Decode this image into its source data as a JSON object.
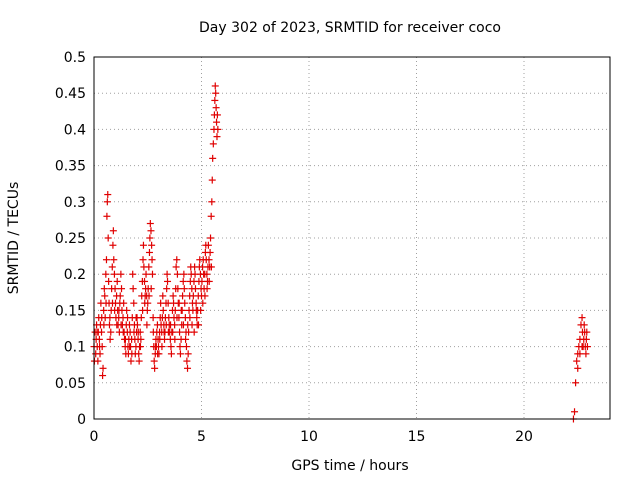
{
  "chart_data": {
    "type": "scatter",
    "title": "Day 302 of 2023, SRMTID for receiver coco",
    "xlabel": "GPS time / hours",
    "ylabel": "SRMTID / TECUs",
    "xlim": [
      0,
      24
    ],
    "ylim": [
      0,
      0.5
    ],
    "xticks": [
      "0",
      "5",
      "10",
      "15",
      "20"
    ],
    "yticks": [
      "0",
      "0.05",
      "0.1",
      "0.15",
      "0.2",
      "0.25",
      "0.3",
      "0.35",
      "0.4",
      "0.45",
      "0.5"
    ],
    "grid": true,
    "marker": "plus",
    "color": "#e00000",
    "points": [
      [
        0.0,
        0.1
      ],
      [
        0.05,
        0.12
      ],
      [
        0.08,
        0.09
      ],
      [
        0.1,
        0.11
      ],
      [
        0.12,
        0.13
      ],
      [
        0.15,
        0.1
      ],
      [
        0.18,
        0.08
      ],
      [
        0.2,
        0.12
      ],
      [
        0.22,
        0.14
      ],
      [
        0.25,
        0.11
      ],
      [
        0.28,
        0.09
      ],
      [
        0.3,
        0.13
      ],
      [
        0.32,
        0.16
      ],
      [
        0.35,
        0.12
      ],
      [
        0.38,
        0.1
      ],
      [
        0.4,
        0.06
      ],
      [
        0.42,
        0.07
      ],
      [
        0.45,
        0.15
      ],
      [
        0.48,
        0.18
      ],
      [
        0.5,
        0.17
      ],
      [
        0.52,
        0.14
      ],
      [
        0.55,
        0.2
      ],
      [
        0.58,
        0.22
      ],
      [
        0.6,
        0.28
      ],
      [
        0.62,
        0.3
      ],
      [
        0.64,
        0.31
      ],
      [
        0.66,
        0.25
      ],
      [
        0.68,
        0.19
      ],
      [
        0.7,
        0.16
      ],
      [
        0.72,
        0.13
      ],
      [
        0.75,
        0.11
      ],
      [
        0.78,
        0.12
      ],
      [
        0.8,
        0.15
      ],
      [
        0.82,
        0.18
      ],
      [
        0.85,
        0.21
      ],
      [
        0.88,
        0.24
      ],
      [
        0.9,
        0.26
      ],
      [
        0.92,
        0.22
      ],
      [
        0.95,
        0.2
      ],
      [
        0.98,
        0.18
      ],
      [
        1.0,
        0.16
      ],
      [
        1.02,
        0.14
      ],
      [
        1.05,
        0.17
      ],
      [
        1.08,
        0.19
      ],
      [
        1.1,
        0.15
      ],
      [
        1.12,
        0.13
      ],
      [
        1.15,
        0.14
      ],
      [
        1.18,
        0.12
      ],
      [
        1.2,
        0.16
      ],
      [
        1.22,
        0.17
      ],
      [
        1.25,
        0.2
      ],
      [
        1.28,
        0.18
      ],
      [
        1.3,
        0.15
      ],
      [
        1.32,
        0.13
      ],
      [
        1.35,
        0.14
      ],
      [
        1.38,
        0.16
      ],
      [
        1.4,
        0.12
      ],
      [
        1.42,
        0.11
      ],
      [
        1.45,
        0.1
      ],
      [
        1.48,
        0.09
      ],
      [
        1.5,
        0.13
      ],
      [
        1.52,
        0.15
      ],
      [
        1.55,
        0.12
      ],
      [
        1.58,
        0.1
      ],
      [
        1.6,
        0.09
      ],
      [
        1.62,
        0.11
      ],
      [
        1.65,
        0.13
      ],
      [
        1.68,
        0.12
      ],
      [
        1.7,
        0.1
      ],
      [
        1.72,
        0.08
      ],
      [
        1.75,
        0.11
      ],
      [
        1.78,
        0.14
      ],
      [
        1.8,
        0.2
      ],
      [
        1.82,
        0.18
      ],
      [
        1.85,
        0.16
      ],
      [
        1.88,
        0.13
      ],
      [
        1.9,
        0.11
      ],
      [
        1.92,
        0.09
      ],
      [
        1.95,
        0.1
      ],
      [
        1.98,
        0.12
      ],
      [
        2.0,
        0.14
      ],
      [
        2.02,
        0.13
      ],
      [
        2.05,
        0.11
      ],
      [
        2.08,
        0.09
      ],
      [
        2.1,
        0.08
      ],
      [
        2.12,
        0.1
      ],
      [
        2.15,
        0.12
      ],
      [
        2.18,
        0.11
      ],
      [
        2.2,
        0.14
      ],
      [
        2.22,
        0.17
      ],
      [
        2.25,
        0.19
      ],
      [
        2.28,
        0.22
      ],
      [
        2.3,
        0.24
      ],
      [
        2.32,
        0.21
      ],
      [
        2.35,
        0.19
      ],
      [
        2.38,
        0.17
      ],
      [
        2.4,
        0.18
      ],
      [
        2.42,
        0.2
      ],
      [
        2.45,
        0.17
      ],
      [
        2.48,
        0.15
      ],
      [
        2.5,
        0.16
      ],
      [
        2.52,
        0.18
      ],
      [
        2.55,
        0.21
      ],
      [
        2.58,
        0.23
      ],
      [
        2.6,
        0.25
      ],
      [
        2.62,
        0.27
      ],
      [
        2.65,
        0.26
      ],
      [
        2.68,
        0.24
      ],
      [
        2.7,
        0.22
      ],
      [
        2.72,
        0.2
      ],
      [
        2.75,
        0.14
      ],
      [
        2.78,
        0.1
      ],
      [
        2.8,
        0.08
      ],
      [
        2.82,
        0.07
      ],
      [
        2.85,
        0.09
      ],
      [
        2.88,
        0.11
      ],
      [
        2.9,
        0.1
      ],
      [
        2.92,
        0.12
      ],
      [
        2.95,
        0.13
      ],
      [
        2.98,
        0.11
      ],
      [
        3.0,
        0.1
      ],
      [
        3.02,
        0.09
      ],
      [
        3.05,
        0.12
      ],
      [
        3.08,
        0.14
      ],
      [
        3.1,
        0.16
      ],
      [
        3.12,
        0.13
      ],
      [
        3.15,
        0.12
      ],
      [
        3.18,
        0.14
      ],
      [
        3.2,
        0.17
      ],
      [
        3.22,
        0.15
      ],
      [
        3.25,
        0.13
      ],
      [
        3.28,
        0.11
      ],
      [
        3.3,
        0.12
      ],
      [
        3.32,
        0.14
      ],
      [
        3.35,
        0.16
      ],
      [
        3.38,
        0.18
      ],
      [
        3.4,
        0.2
      ],
      [
        3.42,
        0.19
      ],
      [
        3.45,
        0.16
      ],
      [
        3.48,
        0.14
      ],
      [
        3.5,
        0.13
      ],
      [
        3.52,
        0.12
      ],
      [
        3.55,
        0.11
      ],
      [
        3.58,
        0.1
      ],
      [
        3.6,
        0.09
      ],
      [
        3.62,
        0.12
      ],
      [
        3.65,
        0.15
      ],
      [
        3.68,
        0.17
      ],
      [
        3.7,
        0.16
      ],
      [
        3.72,
        0.14
      ],
      [
        3.75,
        0.13
      ],
      [
        3.78,
        0.15
      ],
      [
        3.8,
        0.18
      ],
      [
        3.82,
        0.21
      ],
      [
        3.85,
        0.22
      ],
      [
        3.88,
        0.2
      ],
      [
        3.9,
        0.18
      ],
      [
        3.92,
        0.16
      ],
      [
        3.95,
        0.14
      ],
      [
        3.98,
        0.12
      ],
      [
        4.0,
        0.1
      ],
      [
        4.02,
        0.09
      ],
      [
        4.05,
        0.11
      ],
      [
        4.08,
        0.13
      ],
      [
        4.1,
        0.15
      ],
      [
        4.12,
        0.17
      ],
      [
        4.15,
        0.19
      ],
      [
        4.18,
        0.2
      ],
      [
        4.2,
        0.18
      ],
      [
        4.22,
        0.16
      ],
      [
        4.25,
        0.14
      ],
      [
        4.28,
        0.12
      ],
      [
        4.3,
        0.1
      ],
      [
        4.32,
        0.08
      ],
      [
        4.35,
        0.07
      ],
      [
        4.38,
        0.09
      ],
      [
        4.4,
        0.12
      ],
      [
        4.42,
        0.15
      ],
      [
        4.45,
        0.17
      ],
      [
        4.48,
        0.19
      ],
      [
        4.5,
        0.21
      ],
      [
        4.52,
        0.2
      ],
      [
        4.55,
        0.18
      ],
      [
        4.58,
        0.16
      ],
      [
        4.6,
        0.15
      ],
      [
        4.62,
        0.17
      ],
      [
        4.65,
        0.19
      ],
      [
        4.68,
        0.21
      ],
      [
        4.7,
        0.2
      ],
      [
        4.72,
        0.18
      ],
      [
        4.75,
        0.16
      ],
      [
        4.78,
        0.14
      ],
      [
        4.8,
        0.13
      ],
      [
        4.82,
        0.15
      ],
      [
        4.85,
        0.17
      ],
      [
        4.88,
        0.19
      ],
      [
        4.9,
        0.21
      ],
      [
        4.92,
        0.22
      ],
      [
        4.95,
        0.2
      ],
      [
        4.98,
        0.18
      ],
      [
        5.0,
        0.17
      ],
      [
        5.02,
        0.19
      ],
      [
        5.05,
        0.21
      ],
      [
        5.08,
        0.22
      ],
      [
        5.1,
        0.2
      ],
      [
        5.12,
        0.18
      ],
      [
        5.15,
        0.2
      ],
      [
        5.18,
        0.23
      ],
      [
        5.2,
        0.24
      ],
      [
        5.22,
        0.22
      ],
      [
        5.25,
        0.2
      ],
      [
        5.28,
        0.19
      ],
      [
        5.3,
        0.21
      ],
      [
        5.32,
        0.24
      ],
      [
        5.35,
        0.22
      ],
      [
        5.38,
        0.21
      ],
      [
        5.4,
        0.23
      ],
      [
        5.42,
        0.25
      ],
      [
        5.45,
        0.28
      ],
      [
        5.48,
        0.3
      ],
      [
        5.5,
        0.33
      ],
      [
        5.52,
        0.36
      ],
      [
        5.55,
        0.38
      ],
      [
        5.58,
        0.4
      ],
      [
        5.6,
        0.42
      ],
      [
        5.62,
        0.44
      ],
      [
        5.64,
        0.46
      ],
      [
        5.66,
        0.45
      ],
      [
        5.68,
        0.43
      ],
      [
        5.7,
        0.41
      ],
      [
        5.72,
        0.39
      ],
      [
        5.74,
        0.42
      ],
      [
        5.76,
        0.4
      ],
      [
        0.02,
        0.08
      ],
      [
        0.14,
        0.12
      ],
      [
        0.26,
        0.1
      ],
      [
        0.36,
        0.14
      ],
      [
        0.46,
        0.13
      ],
      [
        0.56,
        0.16
      ],
      [
        0.74,
        0.14
      ],
      [
        0.86,
        0.16
      ],
      [
        0.96,
        0.15
      ],
      [
        1.06,
        0.13
      ],
      [
        1.16,
        0.15
      ],
      [
        1.26,
        0.13
      ],
      [
        1.36,
        0.12
      ],
      [
        1.46,
        0.11
      ],
      [
        1.56,
        0.14
      ],
      [
        1.66,
        0.1
      ],
      [
        1.76,
        0.09
      ],
      [
        1.86,
        0.12
      ],
      [
        1.96,
        0.14
      ],
      [
        2.06,
        0.12
      ],
      [
        2.16,
        0.1
      ],
      [
        2.26,
        0.15
      ],
      [
        2.36,
        0.16
      ],
      [
        2.46,
        0.13
      ],
      [
        2.56,
        0.17
      ],
      [
        2.66,
        0.18
      ],
      [
        2.76,
        0.12
      ],
      [
        2.86,
        0.1
      ],
      [
        2.96,
        0.09
      ],
      [
        3.06,
        0.11
      ],
      [
        3.16,
        0.1
      ],
      [
        3.26,
        0.12
      ],
      [
        3.36,
        0.13
      ],
      [
        3.46,
        0.12
      ],
      [
        3.56,
        0.13
      ],
      [
        3.66,
        0.12
      ],
      [
        3.76,
        0.11
      ],
      [
        3.86,
        0.14
      ],
      [
        3.96,
        0.16
      ],
      [
        4.06,
        0.15
      ],
      [
        4.16,
        0.13
      ],
      [
        4.26,
        0.11
      ],
      [
        4.36,
        0.13
      ],
      [
        4.46,
        0.14
      ],
      [
        4.56,
        0.13
      ],
      [
        4.66,
        0.12
      ],
      [
        4.76,
        0.15
      ],
      [
        4.86,
        0.13
      ],
      [
        4.96,
        0.15
      ],
      [
        5.06,
        0.16
      ],
      [
        5.16,
        0.17
      ],
      [
        5.26,
        0.18
      ],
      [
        5.36,
        0.19
      ],
      [
        5.46,
        0.21
      ],
      [
        22.3,
        0.0
      ],
      [
        22.35,
        0.01
      ],
      [
        22.4,
        0.05
      ],
      [
        22.45,
        0.08
      ],
      [
        22.5,
        0.09
      ],
      [
        22.55,
        0.1
      ],
      [
        22.6,
        0.11
      ],
      [
        22.65,
        0.13
      ],
      [
        22.7,
        0.14
      ],
      [
        22.72,
        0.12
      ],
      [
        22.75,
        0.1
      ],
      [
        22.78,
        0.11
      ],
      [
        22.8,
        0.13
      ],
      [
        22.82,
        0.12
      ],
      [
        22.85,
        0.1
      ],
      [
        22.88,
        0.09
      ],
      [
        22.9,
        0.11
      ],
      [
        22.92,
        0.12
      ],
      [
        22.95,
        0.1
      ],
      [
        22.5,
        0.07
      ],
      [
        22.6,
        0.09
      ],
      [
        22.7,
        0.1
      ]
    ]
  }
}
